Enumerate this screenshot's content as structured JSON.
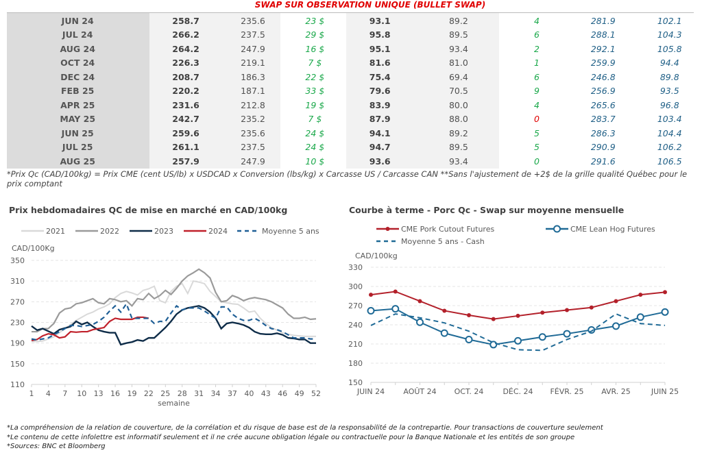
{
  "table": {
    "title": "SWAP SUR OBSERVATION UNIQUE (BULLET SWAP)",
    "rows": [
      [
        "JUN 24",
        "258.7",
        "235.6",
        "23 $",
        "93.1",
        "89.2",
        "4",
        "281.9",
        "102.1"
      ],
      [
        "JUL 24",
        "266.2",
        "237.5",
        "29 $",
        "95.8",
        "89.5",
        "6",
        "288.1",
        "104.3"
      ],
      [
        "AUG 24",
        "264.2",
        "247.9",
        "16 $",
        "95.1",
        "93.4",
        "2",
        "292.1",
        "105.8"
      ],
      [
        "OCT 24",
        "226.3",
        "219.1",
        "7 $",
        "81.6",
        "81.0",
        "1",
        "259.9",
        "94.4"
      ],
      [
        "DEC 24",
        "208.7",
        "186.3",
        "22 $",
        "75.4",
        "69.4",
        "6",
        "246.8",
        "89.8"
      ],
      [
        "FEB 25",
        "220.2",
        "187.1",
        "33 $",
        "79.6",
        "70.5",
        "9",
        "256.9",
        "93.5"
      ],
      [
        "APR 25",
        "231.6",
        "212.8",
        "19 $",
        "83.9",
        "80.0",
        "4",
        "265.6",
        "96.8"
      ],
      [
        "MAY 25",
        "242.7",
        "235.2",
        "7 $",
        "87.9",
        "88.0",
        "0",
        "283.7",
        "103.4"
      ],
      [
        "JUN 25",
        "259.6",
        "235.6",
        "24 $",
        "94.1",
        "89.2",
        "5",
        "286.3",
        "104.4"
      ],
      [
        "JUL 25",
        "261.1",
        "237.5",
        "24 $",
        "94.7",
        "89.5",
        "5",
        "290.9",
        "106.2"
      ],
      [
        "AUG 25",
        "257.9",
        "247.9",
        "10 $",
        "93.6",
        "93.4",
        "0",
        "291.6",
        "106.5"
      ]
    ],
    "negative_rows": [
      7
    ],
    "footnote": "*Prix Qc (CAD/100kg) = Prix CME (cent US/lb) x USDCAD x Conversion (lbs/kg) x Carcasse US / Carcasse CAN **Sans l'ajustement de +2$ de la grille qualité Québec pour le prix comptant"
  },
  "chart_data": [
    {
      "type": "line",
      "title": "Prix hebdomadaires QC de mise en marché en CAD/100kg",
      "ylabel": "CAD/100Kg",
      "xlabel": "semaine",
      "ylim": [
        110,
        350
      ],
      "yticks": [
        "350",
        "310",
        "270",
        "230",
        "190",
        "150",
        "110"
      ],
      "xticks": [
        "1",
        "4",
        "7",
        "10",
        "13",
        "16",
        "19",
        "22",
        "25",
        "28",
        "31",
        "34",
        "37",
        "40",
        "43",
        "46",
        "49",
        "52"
      ],
      "grid": true,
      "legend": "top",
      "series": [
        {
          "name": "2021",
          "color": "#d9d9d9",
          "dash": false,
          "values": [
            193,
            193,
            194,
            198,
            202,
            210,
            218,
            226,
            234,
            240,
            246,
            250,
            256,
            260,
            266,
            278,
            286,
            290,
            287,
            283,
            292,
            295,
            300,
            272,
            268,
            290,
            300,
            305,
            286,
            310,
            308,
            305,
            290,
            280,
            270,
            268,
            266,
            265,
            258,
            250,
            252,
            238,
            228,
            220,
            215,
            210,
            207,
            205,
            204,
            203,
            203,
            203
          ]
        },
        {
          "name": "2022",
          "color": "#9a9a9a",
          "dash": false,
          "values": [
            212,
            212,
            218,
            218,
            228,
            248,
            256,
            258,
            266,
            268,
            272,
            276,
            268,
            266,
            276,
            274,
            270,
            272,
            262,
            276,
            274,
            286,
            276,
            282,
            292,
            284,
            296,
            310,
            320,
            326,
            333,
            326,
            316,
            288,
            270,
            272,
            282,
            278,
            272,
            276,
            278,
            276,
            274,
            270,
            264,
            258,
            246,
            238,
            238,
            240,
            236,
            237
          ]
        },
        {
          "name": "2023",
          "color": "#0e2c48",
          "dash": false,
          "values": [
            223,
            215,
            218,
            213,
            208,
            216,
            219,
            222,
            232,
            226,
            230,
            222,
            215,
            212,
            210,
            210,
            187,
            190,
            192,
            196,
            194,
            200,
            200,
            210,
            220,
            232,
            246,
            254,
            258,
            260,
            262,
            258,
            250,
            238,
            218,
            228,
            230,
            228,
            225,
            220,
            212,
            208,
            207,
            207,
            209,
            206,
            200,
            199,
            197,
            197,
            190,
            190
          ]
        },
        {
          "name": "2024",
          "color": "#c0202a",
          "dash": false,
          "values": [
            195,
            197,
            204,
            208,
            206,
            200,
            202,
            212,
            211,
            212,
            212,
            216,
            218,
            220,
            232,
            238,
            236,
            236,
            236,
            240,
            240,
            238
          ]
        },
        {
          "name": "Moyenne 5 ans",
          "color": "#1f5f96",
          "dash": true,
          "values": [
            198,
            196,
            198,
            200,
            206,
            212,
            218,
            224,
            224,
            222,
            224,
            226,
            232,
            240,
            252,
            262,
            250,
            266,
            238,
            238,
            238,
            238,
            228,
            232,
            232,
            248,
            262,
            254,
            258,
            258,
            258,
            252,
            245,
            238,
            260,
            260,
            246,
            238,
            234,
            234,
            238,
            232,
            224,
            218,
            216,
            212,
            206,
            200,
            200,
            200,
            198,
            198
          ]
        }
      ]
    },
    {
      "type": "line",
      "title": "Courbe à terme - Porc Qc - Swap sur moyenne mensuelle",
      "ylabel": "CAD/100kg",
      "ylim": [
        150,
        330
      ],
      "yticks": [
        "330",
        "300",
        "270",
        "240",
        "210",
        "180",
        "150"
      ],
      "xticks": [
        "JUIN 24",
        "AOÛT 24",
        "OCT. 24",
        "DÉC. 24",
        "FÉVR. 25",
        "AVR. 25",
        "JUIN 25"
      ],
      "grid": true,
      "legend": "top",
      "series": [
        {
          "name": "CME Pork Cutout Futures",
          "color": "#b3202a",
          "marker": "dot",
          "dash": false,
          "values": [
            287,
            292,
            277,
            262,
            255,
            249,
            254,
            259,
            263,
            267,
            277,
            287,
            291
          ]
        },
        {
          "name": "CME Lean Hog Futures",
          "color": "#1f6a96",
          "marker": "ring",
          "dash": false,
          "values": [
            262,
            265,
            244,
            227,
            217,
            209,
            215,
            221,
            226,
            232,
            238,
            252,
            260
          ]
        },
        {
          "name": "Moyenne 5 ans - Cash",
          "color": "#1f6a96",
          "marker": "none",
          "dash": true,
          "values": [
            239,
            257,
            251,
            243,
            230,
            212,
            201,
            200,
            217,
            230,
            257,
            242,
            239
          ]
        }
      ]
    }
  ],
  "footer": [
    "*La compréhension de la relation de couverture, de la corrélation et du risque de base est de la responsabilité de la contrepartie. Pour transactions de couverture seulement",
    "*Le contenu de cette infolettre est informatif seulement et il ne crée aucune obligation légale ou contractuelle pour la Banque Nationale et les entités de son groupe",
    "*Sources: BNC et Bloomberg"
  ]
}
